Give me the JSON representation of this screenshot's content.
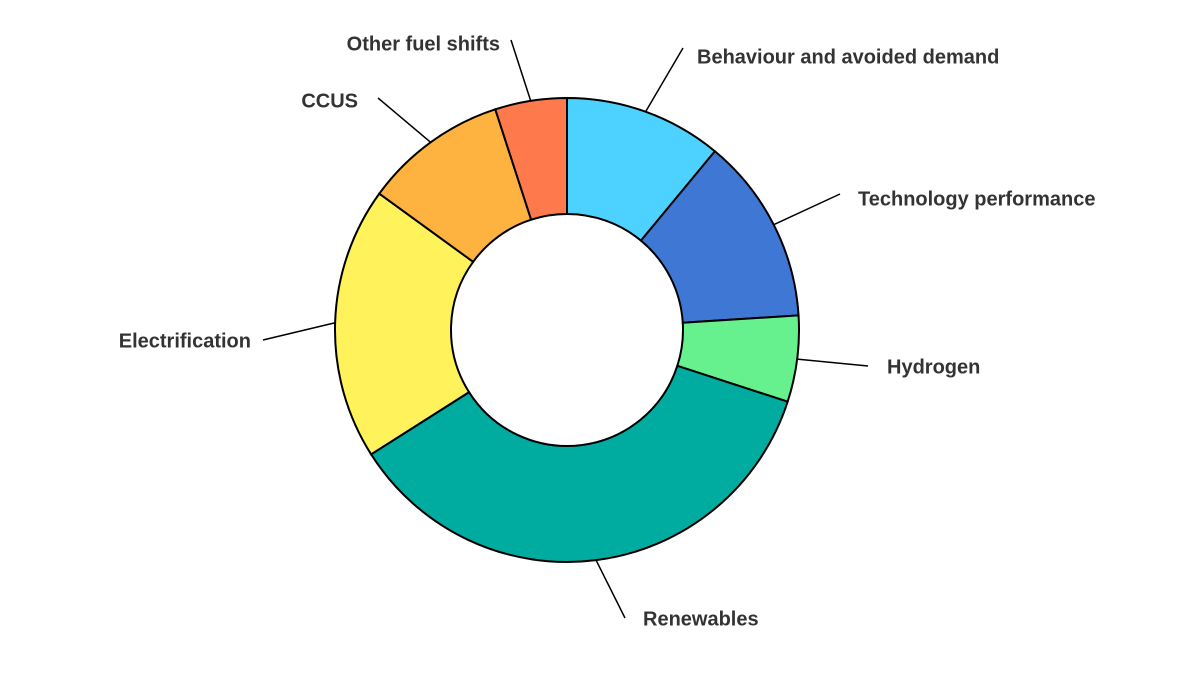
{
  "chart_data": {
    "type": "pie",
    "donut": true,
    "categories": [
      "Behaviour and avoided demand",
      "Technology performance",
      "Hydrogen",
      "Renewables",
      "Electrification",
      "CCUS",
      "Other fuel shifts"
    ],
    "values": [
      11,
      13,
      6,
      36,
      19,
      10,
      5
    ],
    "colors": [
      "#4dd2ff",
      "#3f78d4",
      "#66f08e",
      "#00ab9f",
      "#fff25a",
      "#feb341",
      "#fe7a4c"
    ],
    "title": "",
    "legend": "none"
  }
}
